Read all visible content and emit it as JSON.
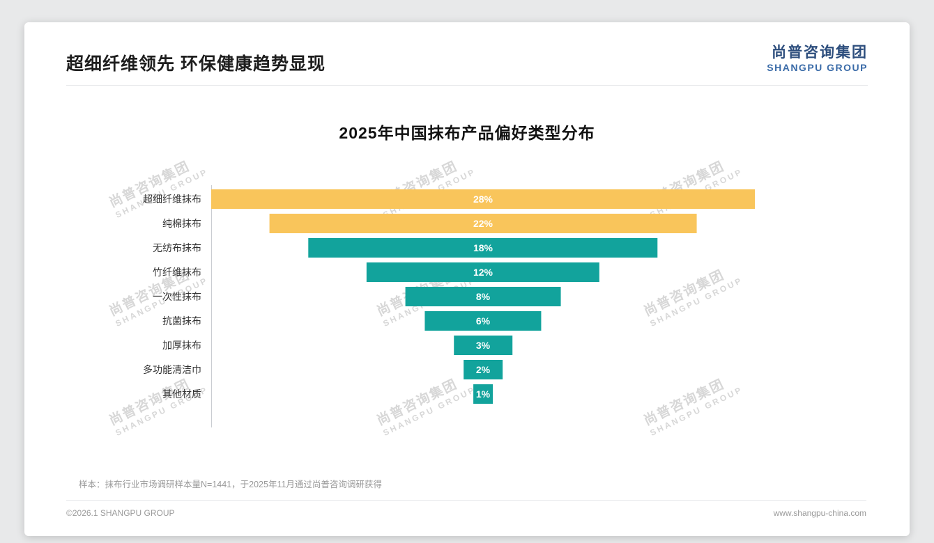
{
  "header": {
    "title": "超细纤维领先 环保健康趋势显现"
  },
  "logo": {
    "cn": "尚普咨询集团",
    "en": "SHANGPU GROUP"
  },
  "brand": {
    "navy": "#2d4e7d",
    "blue": "#3a6ba8"
  },
  "watermark": {
    "cn": "尚普咨询集团",
    "en": "SHANGPU GROUP"
  },
  "chart_data": {
    "type": "bar",
    "orientation": "horizontal",
    "shape": "centered-funnel",
    "title": "2025年中国抹布产品偏好类型分布",
    "categories": [
      "超细纤维抹布",
      "纯棉抹布",
      "无纺布抹布",
      "竹纤维抹布",
      "一次性抹布",
      "抗菌抹布",
      "加厚抹布",
      "多功能清洁巾",
      "其他材质"
    ],
    "values": [
      28,
      22,
      18,
      12,
      8,
      6,
      3,
      2,
      1
    ],
    "value_labels": [
      "28%",
      "22%",
      "18%",
      "12%",
      "8%",
      "6%",
      "3%",
      "2%",
      "1%"
    ],
    "unit": "%",
    "xmax": 28,
    "bar_colors": [
      "#F9C55B",
      "#F9C55B",
      "#12A39C",
      "#12A39C",
      "#12A39C",
      "#12A39C",
      "#12A39C",
      "#12A39C",
      "#12A39C"
    ],
    "value_label_color": "#ffffff",
    "grid": false,
    "legend": "none"
  },
  "footer": {
    "note": "样本：抹布行业市场调研样本量N=1441，于2025年11月通过尚普咨询调研获得",
    "copyright": "©2026.1 SHANGPU GROUP",
    "website": "www.shangpu-china.com"
  }
}
